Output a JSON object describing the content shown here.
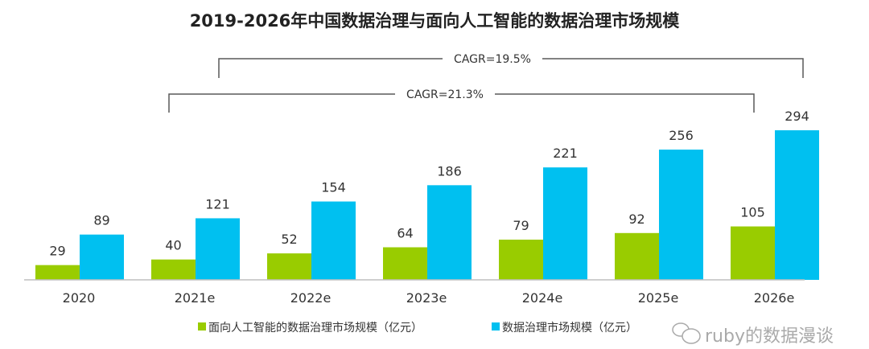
{
  "chart_data": {
    "type": "bar",
    "title": "2019-2026年中国数据治理与面向人工智能的数据治理市场规模",
    "categories": [
      "2020",
      "2021e",
      "2022e",
      "2023e",
      "2024e",
      "2025e",
      "2026e"
    ],
    "series": [
      {
        "name": "面向人工智能的数据治理市场规模（亿元）",
        "color": "#99cc00",
        "values": [
          29,
          40,
          52,
          64,
          79,
          92,
          105
        ]
      },
      {
        "name": "数据治理市场规模（亿元）",
        "color": "#00c0f0",
        "values": [
          89,
          121,
          154,
          186,
          221,
          256,
          294
        ]
      }
    ],
    "annotations": [
      {
        "text": "CAGR=19.5%",
        "from": "2021e",
        "to": "2026e",
        "series": "数据治理市场规模（亿元）"
      },
      {
        "text": "CAGR=21.3%",
        "from": "2021e",
        "to": "2026e",
        "series": "面向人工智能的数据治理市场规模（亿元）"
      }
    ],
    "ylim": [
      0,
      300
    ],
    "grid": false,
    "legend": "bottom"
  },
  "watermark": "ruby的数据漫谈"
}
